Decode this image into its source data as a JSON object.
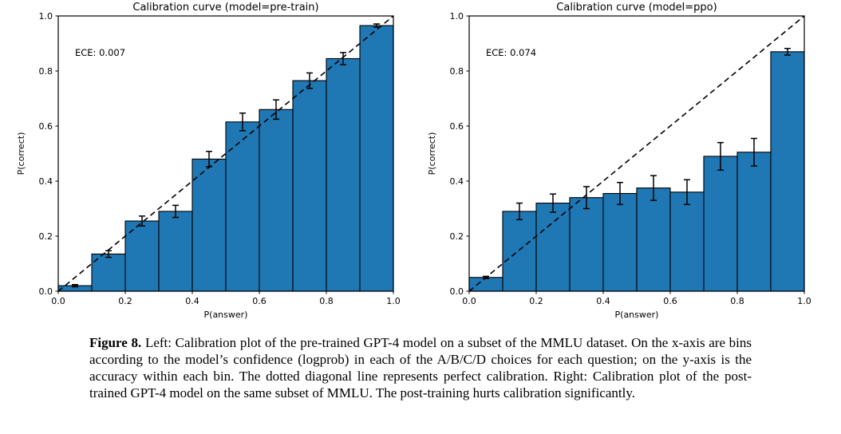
{
  "colors": {
    "bar_fill": "#1f77b4",
    "bar_edge": "#000000",
    "axis": "#000000",
    "diagonal": "#000000",
    "text": "#000000",
    "background": "#ffffff"
  },
  "caption": {
    "label": "Figure 8.",
    "text": "Left: Calibration plot of the pre-trained GPT-4 model on a subset of the MMLU dataset. On the x-axis are bins according to the model’s confidence (logprob) in each of the A/B/C/D choices for each question; on the y-axis is the accuracy within each bin. The dotted diagonal line represents perfect calibration. Right: Calibration plot of the post-trained GPT-4 model on the same subset of MMLU. The post-training hurts calibration significantly."
  },
  "chart_data": [
    {
      "type": "bar",
      "title": "Calibration curve (model=pre-train)",
      "annotation": "ECE: 0.007",
      "xlabel": "P(answer)",
      "ylabel": "P(correct)",
      "xlim": [
        0.0,
        1.0
      ],
      "ylim": [
        0.0,
        1.0
      ],
      "xticks": [
        0.0,
        0.2,
        0.4,
        0.6,
        0.8,
        1.0
      ],
      "yticks": [
        0.0,
        0.2,
        0.4,
        0.6,
        0.8,
        1.0
      ],
      "grid": false,
      "legend": null,
      "bin_width": 0.1,
      "bin_centers": [
        0.05,
        0.15,
        0.25,
        0.35,
        0.45,
        0.55,
        0.65,
        0.75,
        0.85,
        0.95
      ],
      "values": [
        0.02,
        0.135,
        0.255,
        0.29,
        0.48,
        0.615,
        0.66,
        0.765,
        0.845,
        0.965
      ],
      "errors": [
        0.004,
        0.012,
        0.018,
        0.022,
        0.028,
        0.032,
        0.035,
        0.028,
        0.022,
        0.006
      ],
      "diagonal_line": "y=x perfect calibration (dashed)"
    },
    {
      "type": "bar",
      "title": "Calibration curve (model=ppo)",
      "annotation": "ECE: 0.074",
      "xlabel": "P(answer)",
      "ylabel": "P(correct)",
      "xlim": [
        0.0,
        1.0
      ],
      "ylim": [
        0.0,
        1.0
      ],
      "xticks": [
        0.0,
        0.2,
        0.4,
        0.6,
        0.8,
        1.0
      ],
      "yticks": [
        0.0,
        0.2,
        0.4,
        0.6,
        0.8,
        1.0
      ],
      "grid": false,
      "legend": null,
      "bin_width": 0.1,
      "bin_centers": [
        0.05,
        0.15,
        0.25,
        0.35,
        0.45,
        0.55,
        0.65,
        0.75,
        0.85,
        0.95
      ],
      "values": [
        0.05,
        0.29,
        0.32,
        0.34,
        0.355,
        0.375,
        0.36,
        0.49,
        0.505,
        0.87
      ],
      "errors": [
        0.004,
        0.03,
        0.033,
        0.04,
        0.04,
        0.045,
        0.045,
        0.05,
        0.05,
        0.012
      ],
      "diagonal_line": "y=x perfect calibration (dashed)"
    }
  ]
}
